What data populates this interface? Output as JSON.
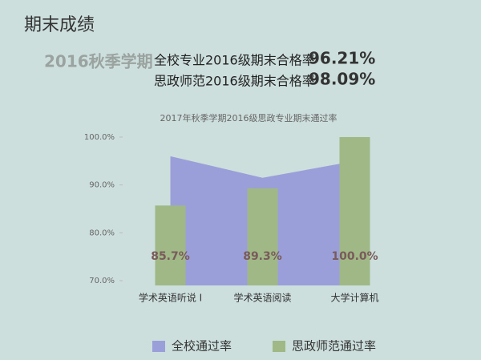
{
  "slide": {
    "heading": "期末成绩",
    "term": "2016秋季学期",
    "line1_label": "全校专业2016级期末合格率",
    "line1_value": "96.21%",
    "line2_label": "思政师范2016级期末合格率",
    "line2_value": "98.09%"
  },
  "chart_data": {
    "type": "area-bar",
    "title": "2017年秋季学期2016级思政专业期末通过率",
    "categories": [
      "学术英语听说 I",
      "学术英语阅读",
      "大学计算机"
    ],
    "series": [
      {
        "name": "全校通过率",
        "color": "#9b9fd9",
        "kind": "area",
        "values": [
          96,
          91.5,
          95
        ]
      },
      {
        "name": "思政师范通过率",
        "color": "#9fb886",
        "kind": "bar",
        "values": [
          85.7,
          89.3,
          100.0
        ],
        "value_labels": [
          "85.7%",
          "89.3%",
          "100.0%"
        ]
      }
    ],
    "ylim": [
      69,
      100.5
    ],
    "yticks": [
      {
        "value": 70,
        "label": "70.0%"
      },
      {
        "value": 80,
        "label": "80.0%"
      },
      {
        "value": 90,
        "label": "90.0%"
      },
      {
        "value": 100,
        "label": "100.0%"
      }
    ],
    "legend": "bottom"
  }
}
